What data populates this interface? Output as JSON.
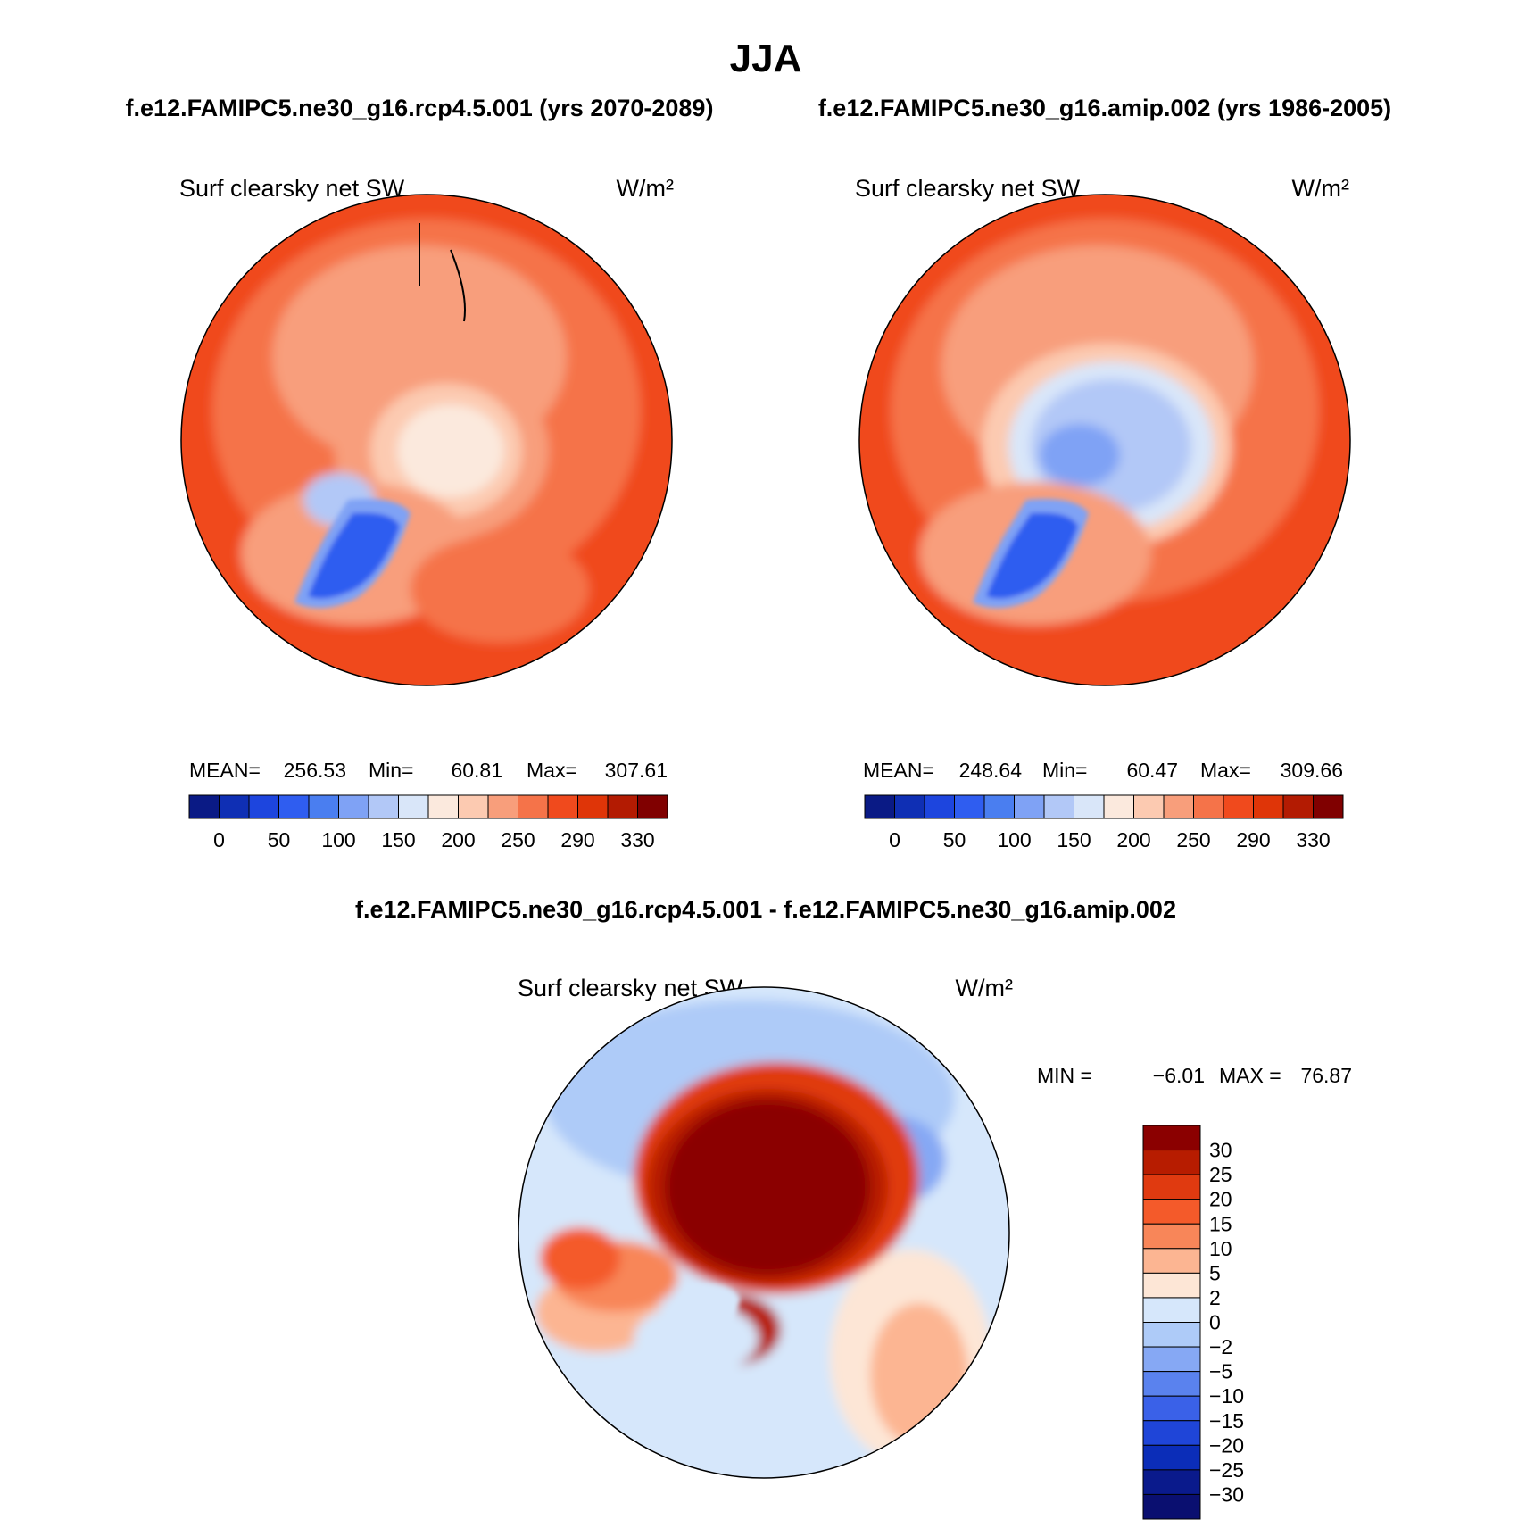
{
  "figure": {
    "season": "JJA",
    "case_titles": [
      "f.e12.FAMIPC5.ne30_g16.rcp4.5.001 (yrs 2070-2089)",
      "f.e12.FAMIPC5.ne30_g16.amip.002 (yrs 1986-2005)"
    ],
    "diff_title": "f.e12.FAMIPC5.ne30_g16.rcp4.5.001 - f.e12.FAMIPC5.ne30_g16.amip.002"
  },
  "chart_data": [
    {
      "type": "heatmap",
      "projection": "north-polar-stereographic",
      "field": "Surf clearsky net SW",
      "units": "W/m²",
      "stats": {
        "mean_label": "MEAN=",
        "mean": "256.53",
        "min_label": "Min=",
        "min": "60.81",
        "max_label": "Max=",
        "max": "307.61"
      },
      "colorbar": {
        "orientation": "horizontal",
        "levels": [
          0,
          25,
          50,
          75,
          100,
          125,
          150,
          175,
          200,
          225,
          250,
          270,
          290,
          310,
          330
        ],
        "tick_labels": [
          "0",
          "50",
          "100",
          "150",
          "200",
          "250",
          "290",
          "330"
        ],
        "colors": [
          "#0a1a85",
          "#0f2fb4",
          "#1d45de",
          "#2f5df0",
          "#4a7ef0",
          "#7fa2f5",
          "#b2c8f7",
          "#d9e6f9",
          "#fbe9dd",
          "#fccab1",
          "#f89e7b",
          "#f57349",
          "#f04a1d",
          "#df3508",
          "#b31b02",
          "#800000"
        ]
      },
      "regions_approx": {
        "central_arctic": 190,
        "greenland_ice_sheet": 70,
        "surrounding_ocean": 290,
        "eurasia_land": 260
      }
    },
    {
      "type": "heatmap",
      "projection": "north-polar-stereographic",
      "field": "Surf clearsky net SW",
      "units": "W/m²",
      "stats": {
        "mean_label": "MEAN=",
        "mean": "248.64",
        "min_label": "Min=",
        "min": "60.47",
        "max_label": "Max=",
        "max": "309.66"
      },
      "colorbar": {
        "orientation": "horizontal",
        "levels": [
          0,
          25,
          50,
          75,
          100,
          125,
          150,
          175,
          200,
          225,
          250,
          270,
          290,
          310,
          330
        ],
        "tick_labels": [
          "0",
          "50",
          "100",
          "150",
          "200",
          "250",
          "290",
          "330"
        ],
        "colors": [
          "#0a1a85",
          "#0f2fb4",
          "#1d45de",
          "#2f5df0",
          "#4a7ef0",
          "#7fa2f5",
          "#b2c8f7",
          "#d9e6f9",
          "#fbe9dd",
          "#fccab1",
          "#f89e7b",
          "#f57349",
          "#f04a1d",
          "#df3508",
          "#b31b02",
          "#800000"
        ]
      },
      "regions_approx": {
        "central_arctic": 130,
        "greenland_ice_sheet": 70,
        "surrounding_ocean": 290,
        "eurasia_land": 260
      }
    },
    {
      "type": "heatmap",
      "projection": "north-polar-stereographic",
      "field": "Surf clearsky net SW",
      "units": "W/m²",
      "stats": {
        "min_label": "MIN =",
        "min": "−6.01",
        "max_label": "MAX =",
        "max": "76.87"
      },
      "colorbar": {
        "orientation": "vertical",
        "levels": [
          -30,
          -25,
          -20,
          -15,
          -10,
          -5,
          -2,
          0,
          2,
          5,
          10,
          15,
          20,
          25,
          30
        ],
        "tick_labels": [
          "30",
          "25",
          "20",
          "15",
          "10",
          "5",
          "2",
          "0",
          "−2",
          "−5",
          "−10",
          "−15",
          "−20",
          "−25",
          "−30"
        ],
        "colors_top_to_bottom": [
          "#8b0000",
          "#b71c00",
          "#e03a10",
          "#f45a2a",
          "#f88659",
          "#fcb592",
          "#fde6d6",
          "#d6e7fb",
          "#aecbf8",
          "#86a8f4",
          "#5a82ee",
          "#3a61e8",
          "#1f45d8",
          "#0b2db8",
          "#0a1a8c",
          "#0a0f70"
        ]
      },
      "regions_approx": {
        "central_arctic": 35,
        "greenland_coast": 20,
        "north_atlantic": 3,
        "north_pacific": -3
      }
    }
  ]
}
